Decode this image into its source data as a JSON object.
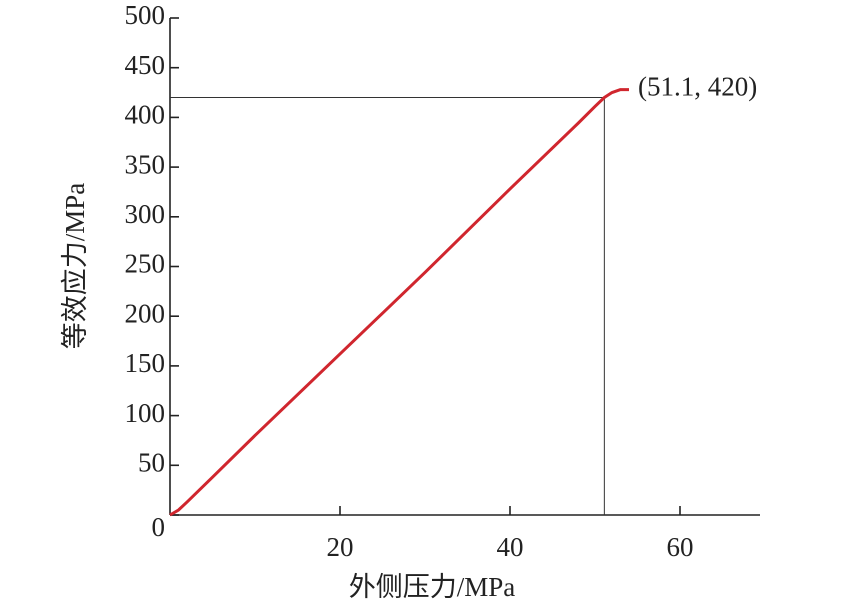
{
  "chart_data": {
    "type": "line",
    "x_label": "外侧压力/MPa",
    "y_label": "等效应力/MPa",
    "series": [
      {
        "name": "等效应力",
        "color": "#d0262e",
        "x": [
          0,
          1,
          2,
          5,
          10,
          20,
          30,
          40,
          48,
          50,
          51.1,
          52,
          53,
          54
        ],
        "values": [
          0,
          5,
          13,
          38,
          80,
          162,
          244,
          328,
          394,
          411,
          420,
          425,
          428,
          428
        ]
      }
    ],
    "annotations": [
      {
        "text": "(51.1, 420)",
        "x": 51.1,
        "y": 420
      }
    ],
    "xlim": [
      0,
      70
    ],
    "ylim": [
      0,
      500
    ],
    "xticks": [
      20,
      40,
      60
    ],
    "yticks": [
      0,
      50,
      100,
      150,
      200,
      250,
      300,
      350,
      400,
      450,
      500
    ]
  }
}
